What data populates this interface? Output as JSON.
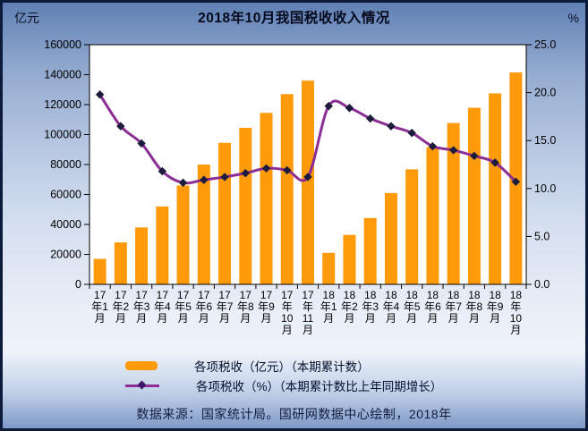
{
  "chart_data": {
    "type": "bar+line",
    "title": "2018年10月我国税收收入情况",
    "categories": [
      "17年1月",
      "17年2月",
      "17年3月",
      "17年4月",
      "17年5月",
      "17年6月",
      "17年7月",
      "17年8月",
      "17年9月",
      "17年10月",
      "17年11月",
      "18年1月",
      "18年2月",
      "18年3月",
      "18年4月",
      "18年5月",
      "18年6月",
      "18年7月",
      "18年8月",
      "18年9月",
      "18年10月"
    ],
    "series": [
      {
        "name": "各项税收（亿元）（本期累计数）",
        "type": "bar",
        "axis": "left",
        "color": "#FF9A0A",
        "values": [
          17000,
          28000,
          38000,
          52000,
          66000,
          80000,
          94500,
          104500,
          114500,
          127000,
          136000,
          21000,
          33000,
          44300,
          61000,
          76800,
          91600,
          107700,
          117900,
          127500,
          141500
        ]
      },
      {
        "name": "各项税收（%）（本期累计数比上年同期增长）",
        "type": "line",
        "axis": "right",
        "color": "#8B2D94",
        "marker": "diamond",
        "marker_color": "#1C1C3C",
        "values": [
          19.8,
          16.5,
          14.7,
          11.8,
          10.6,
          10.9,
          11.2,
          11.6,
          12.1,
          11.9,
          11.2,
          18.6,
          18.4,
          17.3,
          16.5,
          15.8,
          14.4,
          14.0,
          13.4,
          12.7,
          10.7
        ]
      }
    ],
    "left_axis": {
      "unit": "亿元",
      "min": 0,
      "max": 160000,
      "step": 20000,
      "ticks": [
        "0",
        "20000",
        "40000",
        "60000",
        "80000",
        "100000",
        "120000",
        "140000",
        "160000"
      ]
    },
    "right_axis": {
      "unit": "%",
      "min": 0,
      "max": 25,
      "step": 5,
      "ticks": [
        "0.0",
        "5.0",
        "10.0",
        "15.0",
        "20.0",
        "25.0"
      ]
    },
    "grid": false,
    "legend_position": "bottom",
    "plot_background": "#FFFFFF"
  },
  "footer": {
    "source": "数据来源：国家统计局。国研网数据中心绘制，2018年"
  }
}
